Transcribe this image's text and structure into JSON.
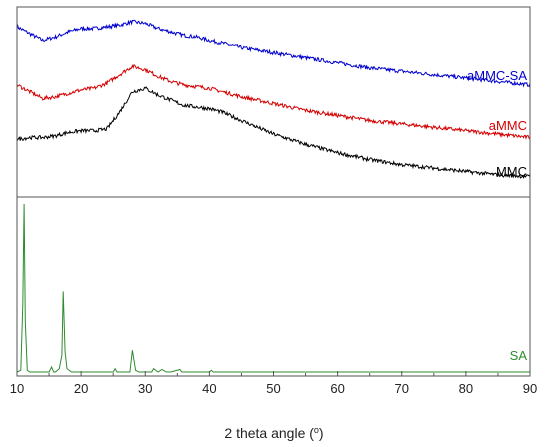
{
  "chart_data": {
    "type": "line",
    "xlabel": "2 theta angle (",
    "xlabel_sup": "o",
    "xlabel_end": ")",
    "xlim": [
      10,
      90
    ],
    "x_ticks": [
      10,
      20,
      30,
      40,
      50,
      60,
      70,
      80,
      90
    ],
    "y_ticks_visible": false,
    "grid": false,
    "panels": [
      {
        "id": "top",
        "series": [
          {
            "name": "aMMC-SA",
            "color": "#0000cc",
            "x": [
              10,
              12,
              14,
              16,
              18,
              20,
              22,
              24,
              26,
              28,
              30,
              32,
              34,
              36,
              38,
              40,
              45,
              50,
              55,
              60,
              65,
              70,
              75,
              80,
              85,
              90
            ],
            "y": [
              0.9,
              0.86,
              0.82,
              0.84,
              0.87,
              0.89,
              0.89,
              0.9,
              0.91,
              0.93,
              0.92,
              0.89,
              0.87,
              0.85,
              0.84,
              0.82,
              0.78,
              0.75,
              0.72,
              0.69,
              0.66,
              0.64,
              0.62,
              0.6,
              0.58,
              0.56
            ]
          },
          {
            "name": "aMMC",
            "color": "#d40000",
            "x": [
              10,
              12,
              14,
              16,
              18,
              20,
              22,
              24,
              26,
              28,
              30,
              32,
              34,
              36,
              38,
              40,
              45,
              50,
              55,
              60,
              65,
              70,
              75,
              80,
              85,
              90
            ],
            "y": [
              0.56,
              0.52,
              0.48,
              0.49,
              0.51,
              0.53,
              0.54,
              0.57,
              0.62,
              0.67,
              0.65,
              0.61,
              0.58,
              0.56,
              0.55,
              0.54,
              0.49,
              0.45,
              0.41,
              0.38,
              0.35,
              0.33,
              0.31,
              0.29,
              0.27,
              0.25
            ]
          },
          {
            "name": "MMC",
            "color": "#000000",
            "x": [
              10,
              12,
              14,
              16,
              18,
              20,
              22,
              24,
              26,
              28,
              30,
              32,
              34,
              36,
              38,
              40,
              42,
              45,
              50,
              55,
              60,
              65,
              70,
              75,
              80,
              85,
              90
            ],
            "y": [
              0.24,
              0.25,
              0.25,
              0.26,
              0.28,
              0.29,
              0.29,
              0.3,
              0.4,
              0.52,
              0.54,
              0.5,
              0.47,
              0.44,
              0.43,
              0.42,
              0.4,
              0.35,
              0.27,
              0.21,
              0.16,
              0.12,
              0.09,
              0.07,
              0.05,
              0.03,
              0.02
            ]
          }
        ]
      },
      {
        "id": "bottom",
        "series": [
          {
            "name": "SA",
            "color": "#2e8b2e",
            "x": [
              10,
              10.6,
              10.9,
              11.1,
              11.3,
              11.6,
              12,
              15,
              15.4,
              15.7,
              16,
              16.6,
              17,
              17.2,
              17.5,
              17.8,
              18.5,
              25,
              25.3,
              25.6,
              27.6,
              28.0,
              28.2,
              28.5,
              29,
              31,
              31.3,
              32,
              32.6,
              33.3,
              34,
              35.4,
              35.7,
              36,
              40,
              40.3,
              40.6,
              45,
              50,
              55,
              60,
              70,
              80,
              90
            ],
            "y": [
              0.0,
              0.01,
              0.4,
              1.0,
              0.3,
              0.01,
              0.0,
              0.0,
              0.03,
              0.0,
              0.0,
              0.02,
              0.1,
              0.48,
              0.12,
              0.02,
              0.0,
              0.0,
              0.02,
              0.0,
              0.0,
              0.13,
              0.08,
              0.01,
              0.0,
              0.0,
              0.02,
              0.0,
              0.015,
              0.0,
              0.0,
              0.015,
              0.0,
              0.0,
              0.0,
              0.01,
              0.0,
              0.0,
              0.0,
              0.0,
              0.0,
              0.0,
              0.0,
              0.0
            ]
          }
        ]
      }
    ]
  }
}
